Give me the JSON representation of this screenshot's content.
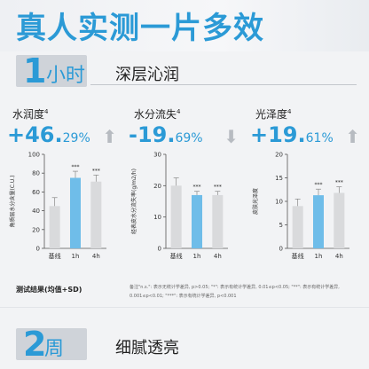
{
  "title": "真人实测一片多效",
  "section1": {
    "number": "1",
    "unit": "小时",
    "subtitle": "深层沁润"
  },
  "section2": {
    "number": "2",
    "unit": "周",
    "subtitle": "细腻透亮"
  },
  "bar_color": "#d9dadc",
  "highlight_color": "#6fbde9",
  "accent_color": "#2b9ad6",
  "metrics": [
    {
      "label": "水润度",
      "sup": "4",
      "big": "+46.",
      "small": "29%",
      "arrow": "up-arrow-icon",
      "arrow_char": "⬆"
    },
    {
      "label": "水分流失",
      "sup": "4",
      "big": "-19.",
      "small": "69%",
      "arrow": "down-arrow-icon",
      "arrow_char": "⬇"
    },
    {
      "label": "光泽度",
      "sup": "4",
      "big": "+19.",
      "small": "61%",
      "arrow": "up-arrow-icon",
      "arrow_char": "⬆"
    }
  ],
  "chart_data": [
    {
      "type": "bar",
      "categories": [
        "基线",
        "1h",
        "4h"
      ],
      "values": [
        45,
        75,
        71
      ],
      "errors": [
        9,
        7,
        7
      ],
      "significance": [
        "",
        "***",
        "***"
      ],
      "ylabel": "角质层水分含量(C.U.)",
      "ylim": [
        0,
        100
      ],
      "yticks": [
        0,
        20,
        40,
        60,
        80,
        100
      ]
    },
    {
      "type": "bar",
      "categories": [
        "基线",
        "1h",
        "4h"
      ],
      "values": [
        20,
        17,
        17
      ],
      "errors": [
        2.5,
        1.2,
        1.2
      ],
      "significance": [
        "",
        "***",
        "***"
      ],
      "ylabel": "经表皮水分流失率(g/m2/h)",
      "ylim": [
        0,
        30
      ],
      "yticks": [
        0,
        10,
        20,
        30
      ]
    },
    {
      "type": "bar",
      "categories": [
        "基线",
        "1h",
        "4h"
      ],
      "values": [
        9,
        11.3,
        11.8
      ],
      "errors": [
        1.5,
        1.3,
        1.3
      ],
      "significance": [
        "",
        "***",
        "***"
      ],
      "ylabel": "皮肤光泽度",
      "ylim": [
        0,
        20
      ],
      "yticks": [
        0,
        5,
        10,
        15,
        20
      ]
    }
  ],
  "notes": {
    "title": "测试结果(均值+SD)",
    "text": "备注\"n.s.\": 表示无统计学差异, p>0.05; \"*\": 表示有统计学差异, 0.01≤p<0.05; \"**\": 表示有统计学差异, 0.001≤p<0.01; \"***\": 表示有统计学差异, p<0.001"
  }
}
